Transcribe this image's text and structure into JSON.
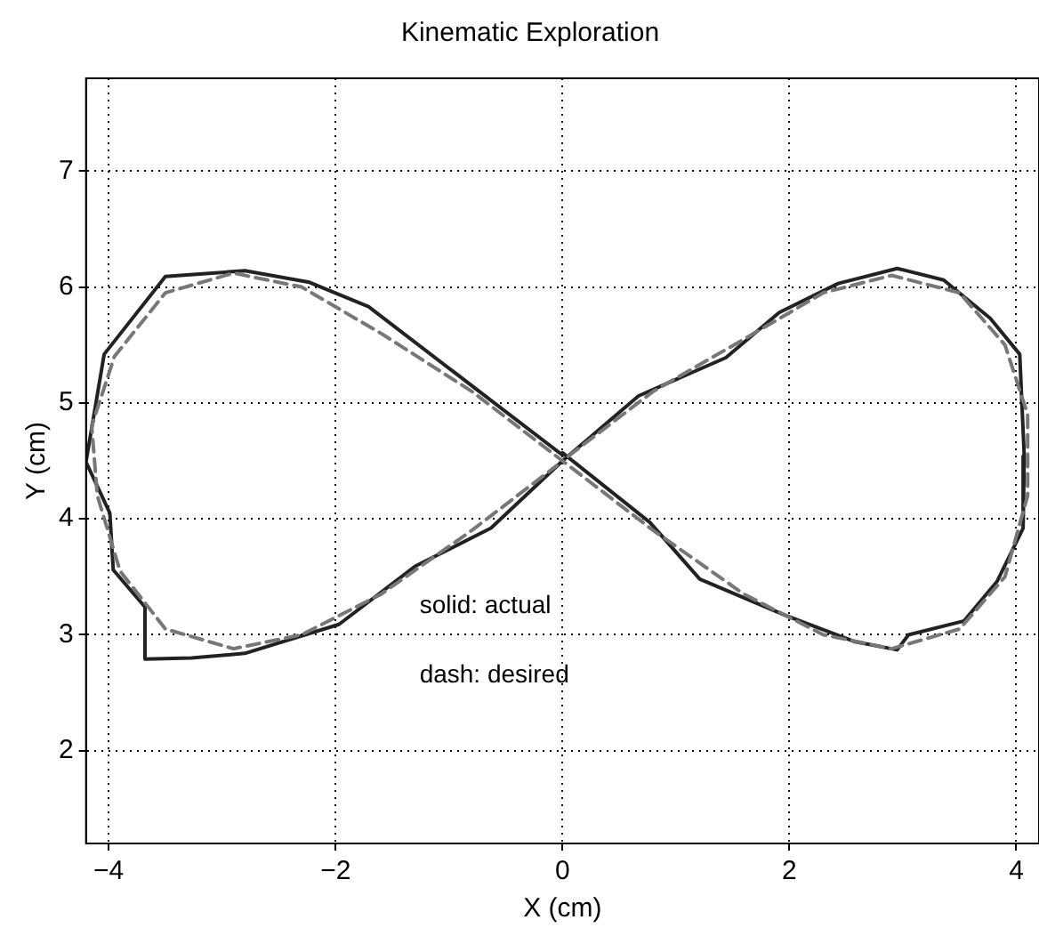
{
  "chart_data": {
    "type": "line",
    "title": "Kinematic Exploration",
    "xlabel": "X (cm)",
    "ylabel": "Y (cm)",
    "xlim": [
      -4.2,
      4.2
    ],
    "ylim": [
      1.2,
      7.8
    ],
    "xticks": [
      -4,
      -2,
      0,
      2,
      4
    ],
    "yticks": [
      2,
      3,
      4,
      5,
      6,
      7
    ],
    "grid": true,
    "legend": false,
    "marker": "none",
    "annotations": [
      "solid: actual",
      "dash: desired"
    ],
    "series": [
      {
        "color": "#222222",
        "line_style": "solid",
        "x": [
          0,
          -1.71,
          -2.23,
          -2.8,
          -3.5,
          -4.04,
          -4.2,
          -3.99,
          -3.96,
          -3.68,
          -3.68,
          -3.27,
          -2.8,
          -1.97,
          -1.3,
          -0.63,
          0,
          0.67,
          1.44,
          1.91,
          2.43,
          2.95,
          3.36,
          3.77,
          4.03,
          4.07,
          4.06,
          3.83,
          3.54,
          3.05,
          2.95,
          2.58,
          1.96,
          1.21,
          0.77,
          0
        ],
        "values": [
          4.55,
          5.83,
          6.04,
          6.14,
          6.09,
          5.42,
          4.49,
          4.05,
          3.56,
          3.24,
          2.79,
          2.8,
          2.84,
          3.09,
          3.59,
          3.92,
          4.5,
          5.06,
          5.39,
          5.78,
          6.03,
          6.16,
          6.06,
          5.73,
          5.42,
          4.54,
          3.92,
          3.46,
          3.12,
          3.0,
          2.87,
          2.94,
          3.17,
          3.48,
          3.97,
          4.57
        ]
      },
      {
        "color": "#777777",
        "line_style": "dashed",
        "x": [
          0.05,
          0.8,
          1.6,
          2.3,
          2.9,
          3.5,
          3.9,
          4.1,
          4.1,
          3.9,
          3.5,
          2.9,
          2.3,
          1.6,
          0.8,
          0,
          -0.8,
          -1.6,
          -2.3,
          -2.9,
          -3.5,
          -3.95,
          -4.15,
          -4.1,
          -3.9,
          -3.5,
          -2.9,
          -2.3,
          -1.6,
          -0.8,
          -0.05
        ],
        "values": [
          4.54,
          5.1,
          5.55,
          5.95,
          6.1,
          5.95,
          5.5,
          4.9,
          4.2,
          3.5,
          3.05,
          2.88,
          3.0,
          3.35,
          3.9,
          4.5,
          5.1,
          5.6,
          6.0,
          6.12,
          5.95,
          5.4,
          4.8,
          4.2,
          3.55,
          3.05,
          2.88,
          3.0,
          3.35,
          3.9,
          4.46
        ]
      }
    ]
  }
}
